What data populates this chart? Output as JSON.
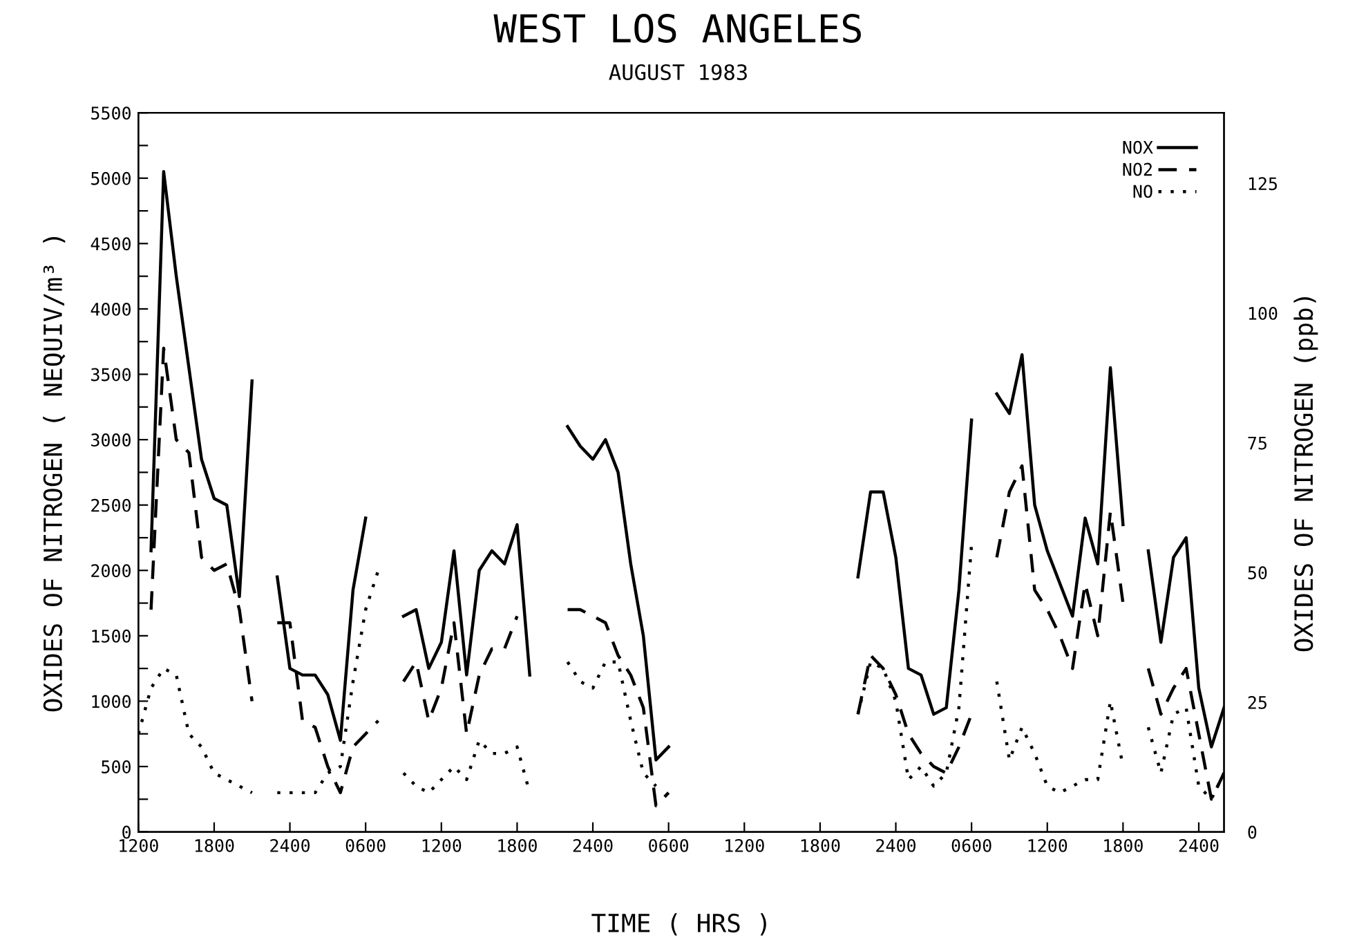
{
  "chart_data": {
    "type": "line",
    "title": "WEST LOS ANGELES",
    "subtitle": "AUGUST 1983",
    "xlabel": "TIME ( HRS )",
    "ylabel": "OXIDES OF NITROGEN ( NEQUIV/m³ )",
    "y2label": "OXIDES OF NITROGEN (ppb)",
    "categories": [
      "1200",
      null,
      null,
      null,
      null,
      null,
      "1800",
      null,
      null,
      null,
      null,
      null,
      "2400",
      null,
      null,
      null,
      null,
      null,
      "0600",
      null,
      null,
      null,
      null,
      null,
      "1200",
      null,
      null,
      null,
      null,
      null,
      "1800",
      null,
      null,
      null,
      null,
      null,
      "2400",
      null,
      null,
      null,
      null,
      null,
      "0600",
      null,
      null,
      null,
      null,
      null,
      "1200",
      null,
      null,
      null,
      null,
      null,
      "1800",
      null,
      null,
      null,
      null,
      null,
      "2400",
      null,
      null,
      null,
      null,
      null,
      "0600",
      null,
      null,
      null,
      null,
      null,
      "1200",
      null,
      null,
      null,
      null,
      null,
      "1800",
      null,
      null,
      null,
      null,
      null,
      "2400",
      null,
      null
    ],
    "ylim": [
      0,
      5500
    ],
    "y2lim": [
      0,
      138.6
    ],
    "yticks": [
      0,
      {
        "value": 250,
        "label": null
      },
      500,
      {
        "value": 750,
        "label": null
      },
      1000,
      {
        "value": 1250,
        "label": null
      },
      1500,
      {
        "value": 1750,
        "label": null
      },
      2000,
      {
        "value": 2250,
        "label": null
      },
      2500,
      {
        "value": 2750,
        "label": null
      },
      3000,
      {
        "value": 3250,
        "label": null
      },
      3500,
      {
        "value": 3750,
        "label": null
      },
      4000,
      {
        "value": 4250,
        "label": null
      },
      4500,
      {
        "value": 4750,
        "label": null
      },
      5000,
      {
        "value": 5250,
        "label": null
      },
      5500
    ],
    "y2ticks": [
      0,
      25,
      50,
      75,
      100,
      125
    ],
    "legend": "top right",
    "series": [
      {
        "name": "NOX",
        "color": "#000000",
        "line_style": "solid",
        "values": [
          null,
          2150,
          5050,
          4250,
          3550,
          2850,
          2550,
          2500,
          1800,
          3450,
          null,
          1950,
          1250,
          1200,
          1200,
          1050,
          700,
          1850,
          2400,
          null,
          null,
          1650,
          1700,
          1250,
          1450,
          2150,
          1200,
          2000,
          2150,
          2050,
          2350,
          1200,
          null,
          null,
          3100,
          2950,
          2850,
          3000,
          2750,
          2050,
          1500,
          550,
          650,
          null,
          null,
          null,
          null,
          null,
          null,
          null,
          null,
          null,
          null,
          null,
          null,
          null,
          null,
          1950,
          2600,
          2600,
          2100,
          1250,
          1200,
          900,
          950,
          1850,
          3150,
          null,
          3350,
          3200,
          3650,
          2500,
          2150,
          1900,
          1650,
          2400,
          2050,
          3550,
          2350,
          null,
          2150,
          1450,
          2100,
          2250,
          1100,
          650,
          950
        ]
      },
      {
        "name": "NO2",
        "color": "#000000",
        "line_style": "dashed",
        "values": [
          null,
          1700,
          3700,
          3000,
          2900,
          2100,
          2000,
          2050,
          1700,
          1000,
          null,
          1600,
          1600,
          850,
          800,
          500,
          300,
          650,
          750,
          850,
          null,
          1150,
          1300,
          850,
          1100,
          1600,
          750,
          1200,
          1400,
          1400,
          1650,
          null,
          null,
          null,
          1700,
          1700,
          1650,
          1600,
          1350,
          1200,
          950,
          200,
          300,
          null,
          null,
          null,
          null,
          null,
          null,
          null,
          null,
          null,
          null,
          null,
          null,
          null,
          null,
          900,
          1350,
          1250,
          1050,
          750,
          600,
          500,
          450,
          650,
          900,
          null,
          2100,
          2600,
          2800,
          1850,
          1700,
          1500,
          1250,
          1900,
          1500,
          2450,
          1750,
          null,
          1250,
          900,
          1100,
          1250,
          750,
          250,
          450
        ]
      },
      {
        "name": "NO",
        "color": "#000000",
        "line_style": "dotted",
        "values": [
          750,
          1100,
          1250,
          1200,
          750,
          650,
          450,
          400,
          350,
          300,
          null,
          300,
          300,
          300,
          300,
          450,
          500,
          1150,
          1700,
          2000,
          null,
          450,
          350,
          300,
          400,
          500,
          400,
          700,
          600,
          600,
          650,
          300,
          null,
          null,
          1300,
          1150,
          1100,
          1300,
          1300,
          850,
          450,
          350,
          null,
          null,
          null,
          null,
          null,
          null,
          null,
          null,
          null,
          null,
          null,
          null,
          null,
          null,
          null,
          900,
          1300,
          1250,
          1000,
          400,
          500,
          350,
          450,
          950,
          2200,
          null,
          1150,
          550,
          800,
          600,
          350,
          300,
          350,
          400,
          400,
          1000,
          500,
          null,
          800,
          450,
          900,
          950,
          350,
          250,
          450
        ]
      }
    ]
  }
}
